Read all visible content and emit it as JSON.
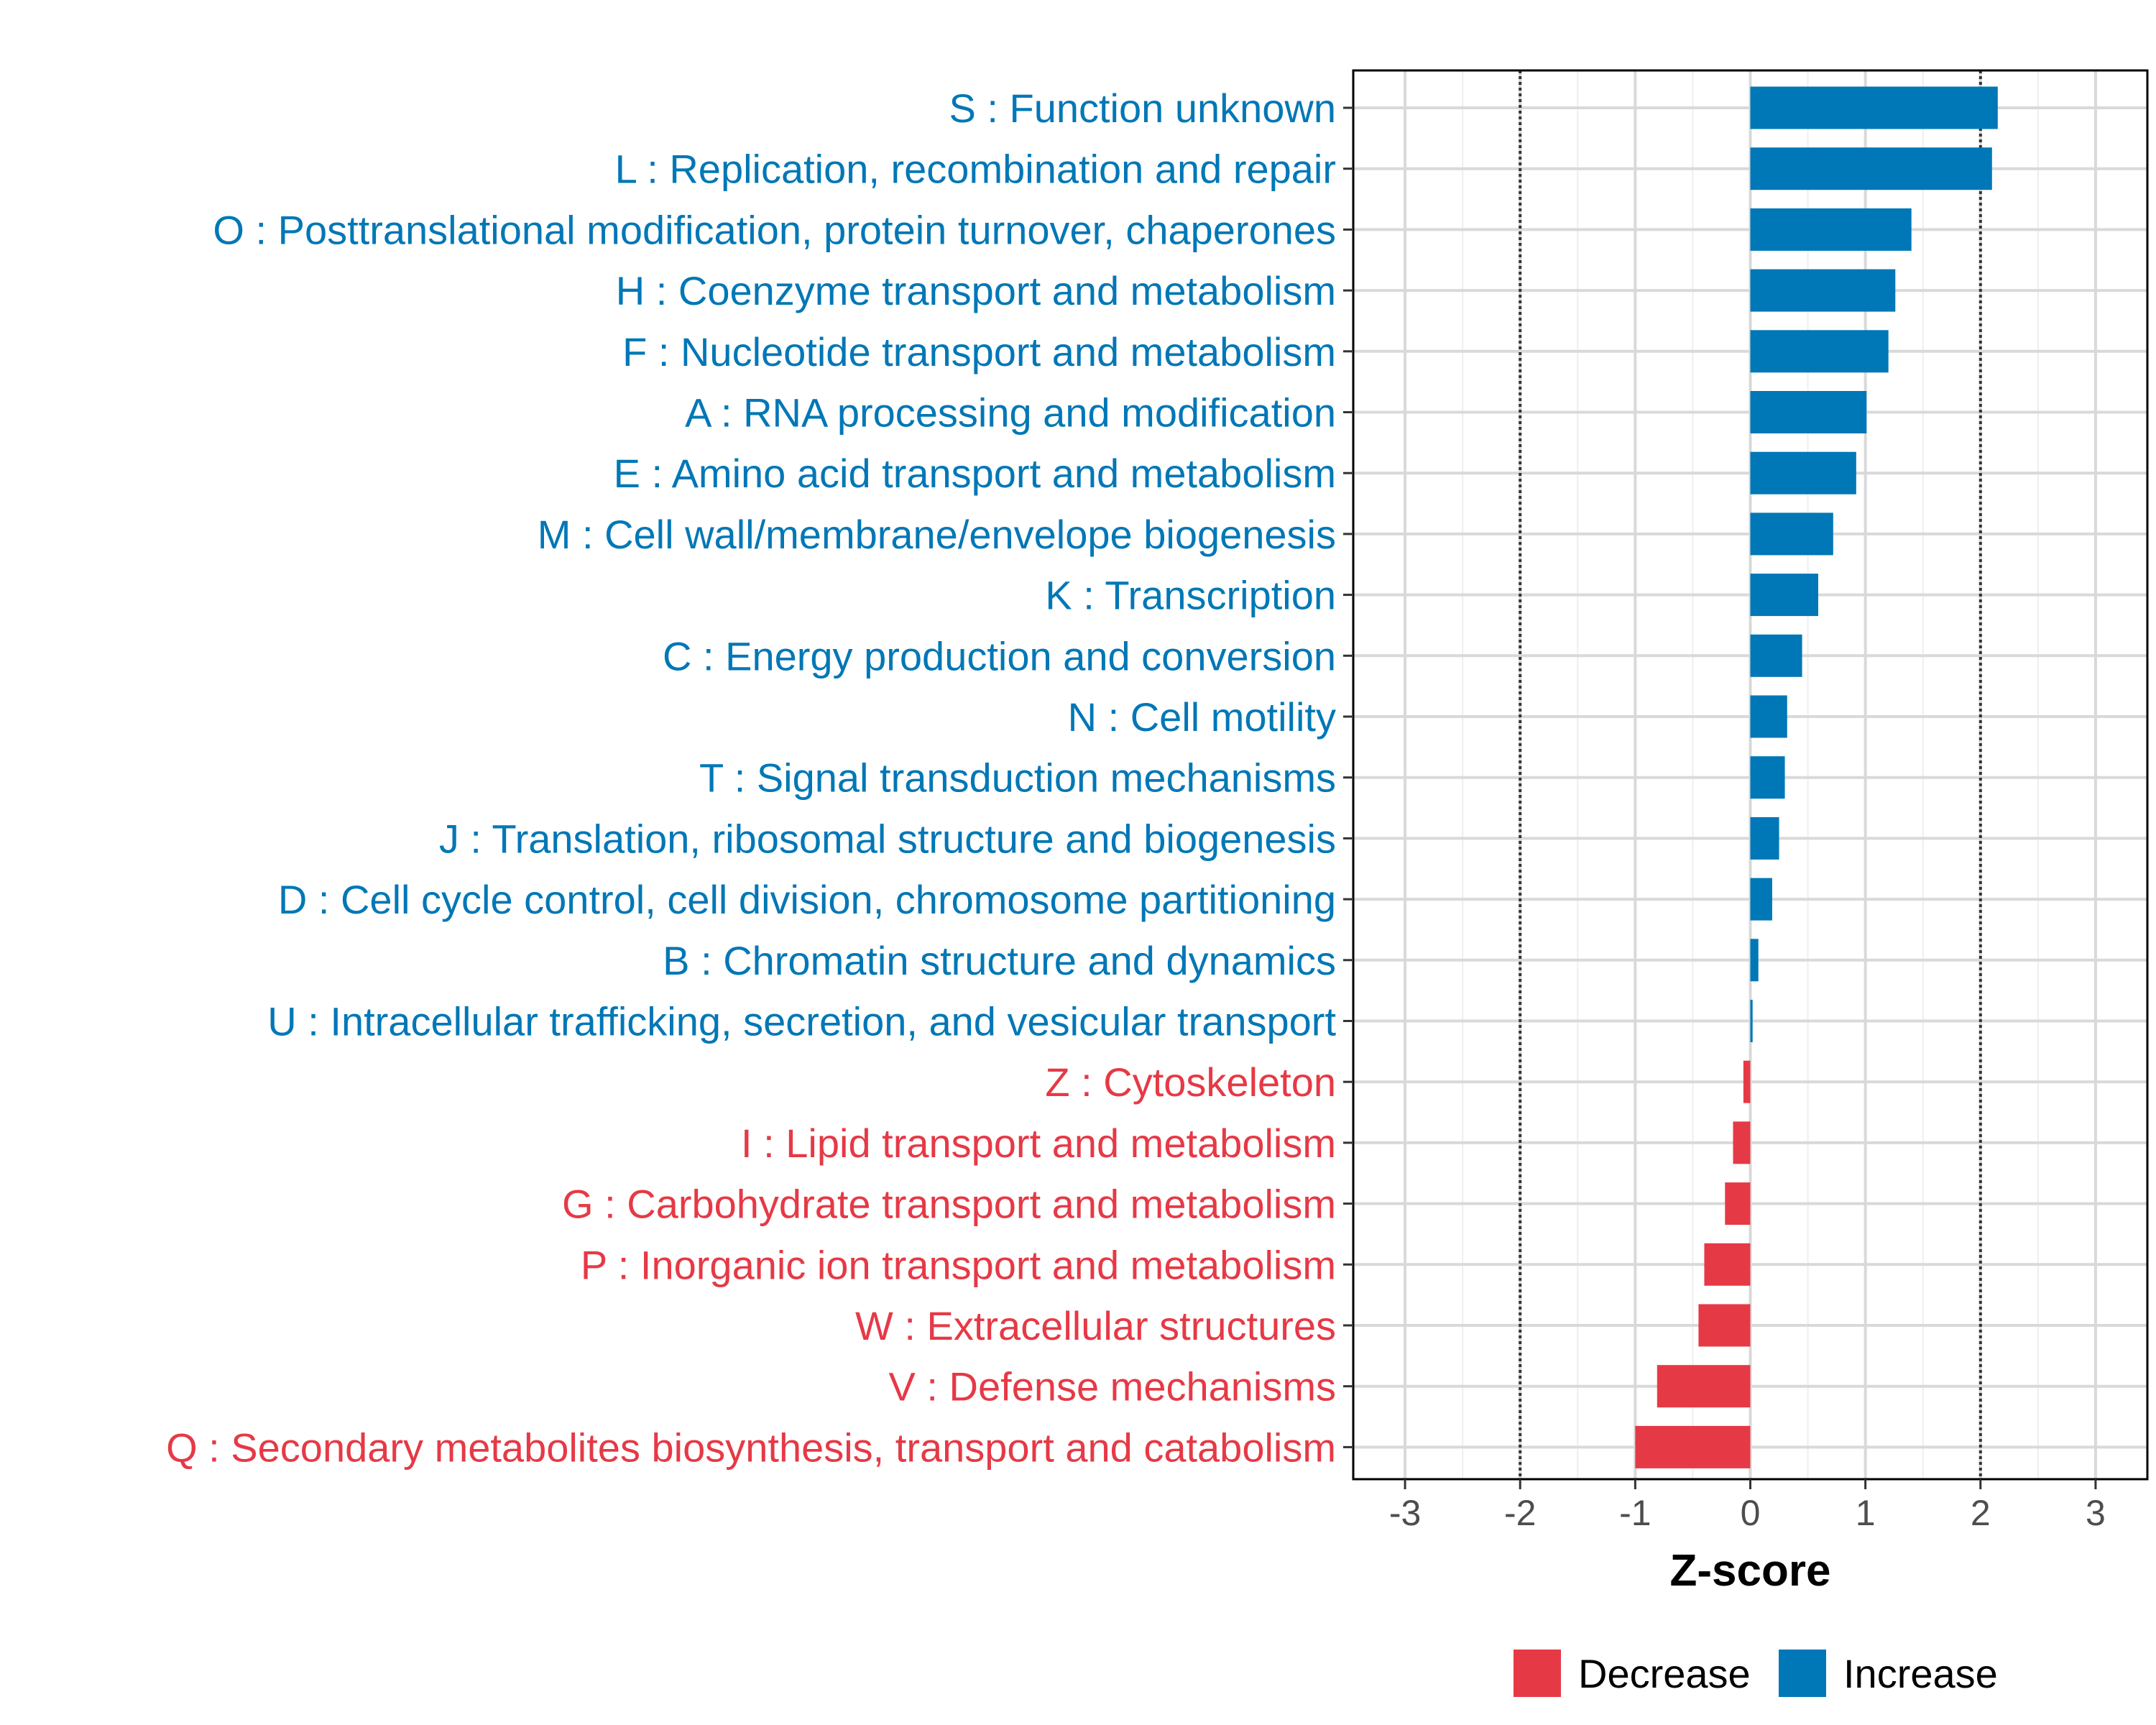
{
  "chart_data": {
    "type": "bar",
    "orientation": "horizontal",
    "xlabel": "Z-score",
    "xlim": [
      -3.45,
      3.45
    ],
    "x_ticks": [
      "-3",
      "-2",
      "-1",
      "0",
      "1",
      "2",
      "3"
    ],
    "reference_lines": [
      -2,
      2
    ],
    "grid": true,
    "legend_position": "bottom-right",
    "categories": [
      "S : Function unknown",
      "L : Replication, recombination and repair",
      "O : Posttranslational modification, protein turnover, chaperones",
      "H : Coenzyme transport and metabolism",
      "F : Nucleotide transport and metabolism",
      "A : RNA processing and modification",
      "E : Amino acid transport and metabolism",
      "M : Cell wall/membrane/envelope biogenesis",
      "K : Transcription",
      "C : Energy production and conversion",
      "N : Cell motility",
      "T : Signal transduction mechanisms",
      "J : Translation, ribosomal structure and biogenesis",
      "D : Cell cycle control, cell division, chromosome partitioning",
      "B : Chromatin structure and dynamics",
      "U : Intracellular trafficking, secretion, and vesicular transport",
      "Z : Cytoskeleton",
      "I : Lipid transport and metabolism",
      "G : Carbohydrate transport and metabolism",
      "P : Inorganic ion transport and metabolism",
      "W : Extracellular structures",
      "V : Defense mechanisms",
      "Q : Secondary metabolites biosynthesis, transport and catabolism"
    ],
    "values": [
      2.15,
      2.1,
      1.4,
      1.26,
      1.2,
      1.01,
      0.92,
      0.72,
      0.59,
      0.45,
      0.32,
      0.3,
      0.25,
      0.19,
      0.07,
      0.02,
      -0.06,
      -0.15,
      -0.22,
      -0.4,
      -0.45,
      -0.81,
      -1.0
    ],
    "groups": [
      "Increase",
      "Increase",
      "Increase",
      "Increase",
      "Increase",
      "Increase",
      "Increase",
      "Increase",
      "Increase",
      "Increase",
      "Increase",
      "Increase",
      "Increase",
      "Increase",
      "Increase",
      "Increase",
      "Decrease",
      "Decrease",
      "Decrease",
      "Decrease",
      "Decrease",
      "Decrease",
      "Decrease"
    ],
    "legend": [
      {
        "name": "Decrease",
        "color": "#E63946"
      },
      {
        "name": "Increase",
        "color": "#0077B6"
      }
    ],
    "colors": {
      "Decrease": "#E63946",
      "Increase": "#0077B6"
    }
  }
}
